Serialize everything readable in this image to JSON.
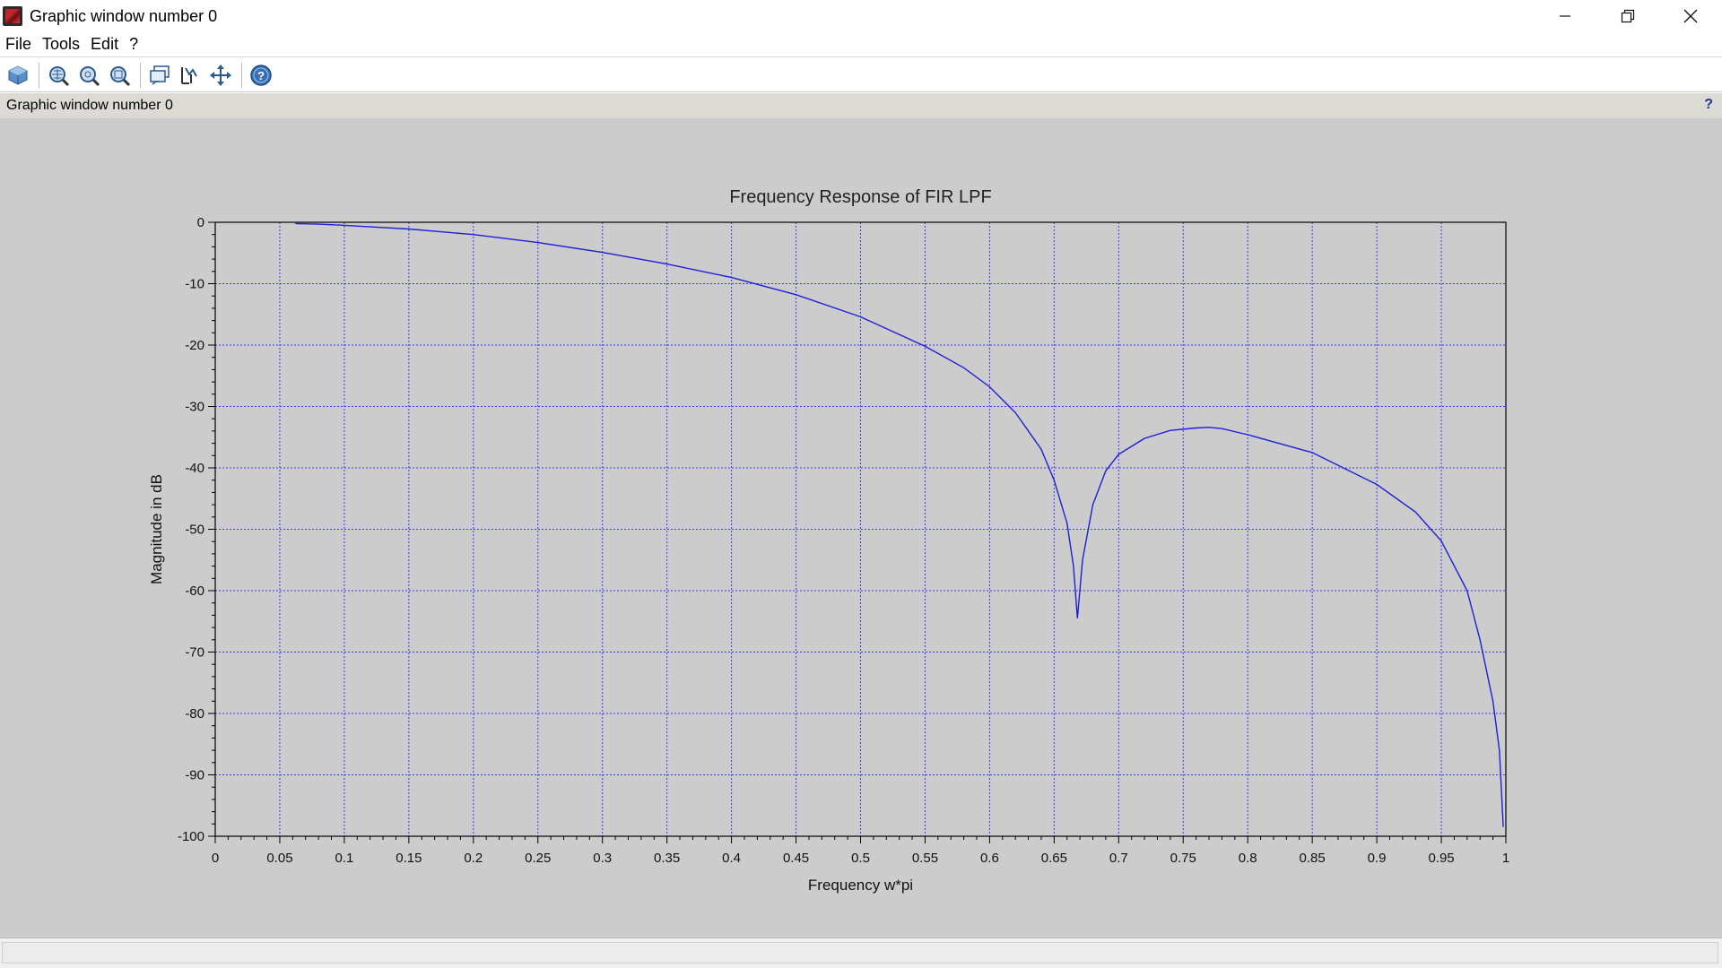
{
  "window": {
    "title": "Graphic window number 0",
    "controls": {
      "minimize": "—",
      "restore": "❐",
      "close": "✕"
    }
  },
  "menu": [
    "File",
    "Tools",
    "Edit",
    "?"
  ],
  "toolbar": {
    "icons": [
      "rotate-icon",
      "zoom-icon",
      "zoom-in-icon",
      "zoom-out-icon",
      "datatip-icon",
      "editor-icon",
      "pan-icon",
      "help-icon"
    ]
  },
  "infobar": {
    "text": "Graphic window number 0",
    "help": "?"
  },
  "colors": {
    "canvas": "#cccccc",
    "curve": "#1f1fd8",
    "grid": "#3a3af0"
  },
  "chart_data": {
    "type": "line",
    "title": "Frequency Response of FIR LPF",
    "xlabel": "Frequency w*pi",
    "ylabel": "Magnitude in dB",
    "xlim": [
      0,
      1
    ],
    "ylim": [
      -100,
      0
    ],
    "xticks": [
      "0",
      "0.05",
      "0.1",
      "0.15",
      "0.2",
      "0.25",
      "0.3",
      "0.35",
      "0.4",
      "0.45",
      "0.5",
      "0.55",
      "0.6",
      "0.65",
      "0.7",
      "0.75",
      "0.8",
      "0.85",
      "0.9",
      "0.95",
      "1"
    ],
    "yticks": [
      "0",
      "-10",
      "-20",
      "-30",
      "-40",
      "-50",
      "-60",
      "-70",
      "-80",
      "-90",
      "-100"
    ],
    "grid": true,
    "series": [
      {
        "x": [
          0.062,
          0.08,
          0.1,
          0.15,
          0.2,
          0.25,
          0.3,
          0.35,
          0.4,
          0.45,
          0.5,
          0.55,
          0.58,
          0.6,
          0.62,
          0.64,
          0.65,
          0.66,
          0.665,
          0.668,
          0.672,
          0.68,
          0.69,
          0.7,
          0.72,
          0.74,
          0.76,
          0.77,
          0.78,
          0.8,
          0.85,
          0.9,
          0.93,
          0.95,
          0.97,
          0.98,
          0.99,
          0.995,
          0.998
        ],
        "y": [
          -0.2,
          -0.3,
          -0.5,
          -1.1,
          -2.0,
          -3.3,
          -4.9,
          -6.8,
          -9.0,
          -11.8,
          -15.4,
          -20.2,
          -23.7,
          -26.8,
          -31.0,
          -37.0,
          -42.0,
          -49.0,
          -56.0,
          -64.5,
          -55.0,
          -46.0,
          -40.5,
          -37.8,
          -35.2,
          -33.9,
          -33.5,
          -33.4,
          -33.6,
          -34.6,
          -37.5,
          -42.7,
          -47.2,
          -51.9,
          -60.0,
          -68.0,
          -78.0,
          -86.0,
          -98.5
        ]
      }
    ]
  }
}
